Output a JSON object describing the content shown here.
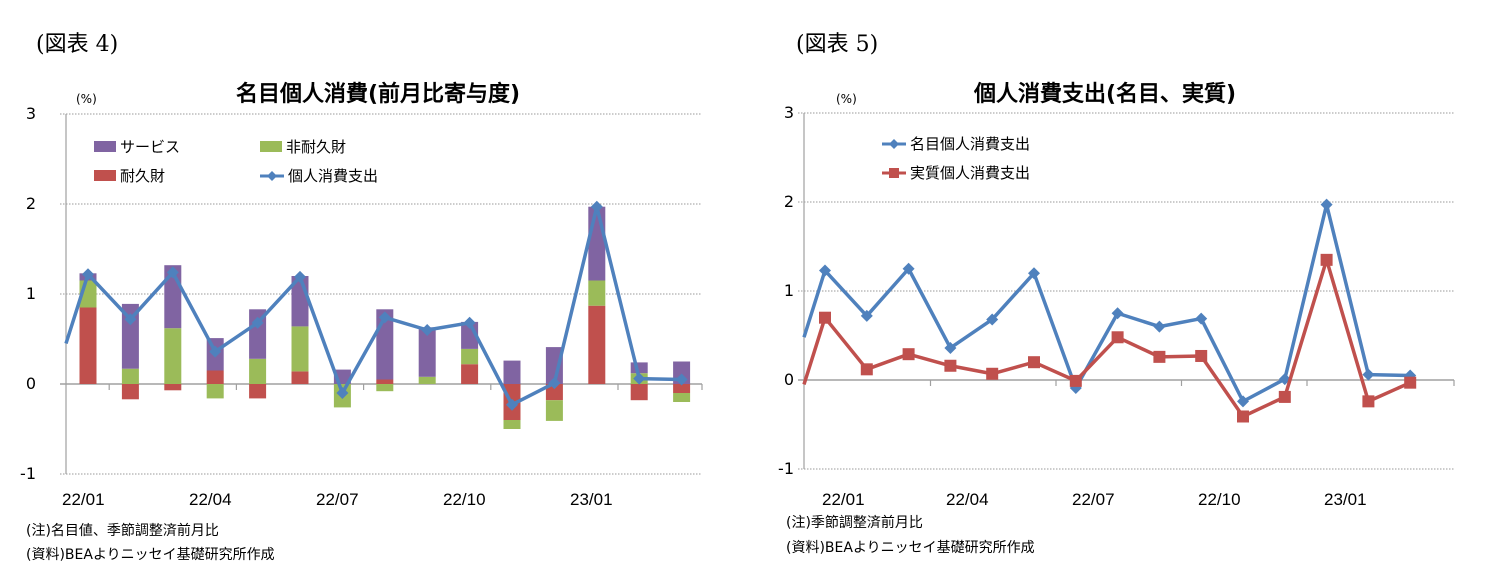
{
  "left": {
    "fig_label": "(図表 4)",
    "title": "名目個人消費(前月比寄与度)",
    "unit": "(%)",
    "y_ticks": [
      "3",
      "2",
      "1",
      "0",
      "-1"
    ],
    "x_ticks": [
      "22/01",
      "22/04",
      "22/07",
      "22/10",
      "23/01"
    ],
    "legend": {
      "services": "サービス",
      "nondurable": "非耐久財",
      "durable": "耐久財",
      "total": "個人消費支出"
    },
    "notes": [
      "(注)名目値、季節調整済前月比",
      "(資料)BEAよりニッセイ基礎研究所作成"
    ]
  },
  "right": {
    "fig_label": "(図表 5)",
    "title": "個人消費支出(名目、実質)",
    "unit": "(%)",
    "y_ticks": [
      "3",
      "2",
      "1",
      "0",
      "-1"
    ],
    "x_ticks": [
      "22/01",
      "22/04",
      "22/07",
      "22/10",
      "23/01"
    ],
    "legend": {
      "nominal": "名目個人消費支出",
      "real": "実質個人消費支出"
    },
    "notes": [
      "(注)季節調整済前月比",
      "(資料)BEAよりニッセイ基礎研究所作成"
    ]
  },
  "colors": {
    "services": "#8064a2",
    "nondurable": "#9bbb59",
    "durable": "#c0504d",
    "line_blue": "#4f81bd",
    "line_red": "#c0504d",
    "grid": "#999999",
    "axis": "#a0a0a0"
  },
  "chart_data": [
    {
      "type": "bar",
      "stacked": true,
      "title": "名目個人消費(前月比寄与度)",
      "ylabel": "(%)",
      "ylim": [
        -1,
        3
      ],
      "categories": [
        "21/12",
        "22/01",
        "22/02",
        "22/03",
        "22/04",
        "22/05",
        "22/06",
        "22/07",
        "22/08",
        "22/09",
        "22/10",
        "22/11",
        "22/12",
        "23/01",
        "23/02",
        "23/03"
      ],
      "series": [
        {
          "name": "耐久財",
          "type": "bar",
          "values": [
            null,
            0.85,
            -0.17,
            -0.07,
            0.15,
            -0.16,
            0.14,
            0.0,
            0.05,
            0.0,
            0.22,
            -0.4,
            -0.18,
            0.87,
            -0.18,
            -0.1
          ]
        },
        {
          "name": "非耐久財",
          "type": "bar",
          "values": [
            null,
            0.3,
            0.17,
            0.62,
            -0.16,
            0.28,
            0.5,
            -0.26,
            -0.08,
            0.08,
            0.17,
            -0.1,
            -0.23,
            0.28,
            0.12,
            -0.1
          ]
        },
        {
          "name": "サービス",
          "type": "bar",
          "values": [
            null,
            0.08,
            0.72,
            0.7,
            0.36,
            0.55,
            0.56,
            0.16,
            0.78,
            0.55,
            0.3,
            0.26,
            0.41,
            0.82,
            0.12,
            0.25
          ]
        },
        {
          "name": "個人消費支出",
          "type": "line",
          "values": [
            0.45,
            1.22,
            0.72,
            1.24,
            0.36,
            0.68,
            1.19,
            -0.1,
            0.74,
            0.6,
            0.68,
            -0.23,
            0.01,
            1.97,
            0.06,
            0.05
          ]
        }
      ],
      "x_tick_labels": [
        "22/01",
        "22/04",
        "22/07",
        "22/10",
        "23/01"
      ],
      "grid": true,
      "legend_position": "upper-left inside"
    },
    {
      "type": "line",
      "title": "個人消費支出(名目、実質)",
      "ylabel": "(%)",
      "ylim": [
        -1,
        3
      ],
      "categories": [
        "21/12",
        "22/01",
        "22/02",
        "22/03",
        "22/04",
        "22/05",
        "22/06",
        "22/07",
        "22/08",
        "22/09",
        "22/10",
        "22/11",
        "22/12",
        "23/01",
        "23/02",
        "23/03"
      ],
      "series": [
        {
          "name": "名目個人消費支出",
          "values": [
            0.48,
            1.23,
            0.72,
            1.25,
            0.36,
            0.68,
            1.2,
            -0.09,
            0.75,
            0.6,
            0.69,
            -0.24,
            0.01,
            1.97,
            0.06,
            0.05
          ]
        },
        {
          "name": "実質個人消費支出",
          "values": [
            -0.05,
            0.7,
            0.12,
            0.29,
            0.16,
            0.07,
            0.2,
            -0.01,
            0.48,
            0.26,
            0.27,
            -0.41,
            -0.19,
            1.35,
            -0.24,
            -0.03
          ]
        }
      ],
      "x_tick_labels": [
        "22/01",
        "22/04",
        "22/07",
        "22/10",
        "23/01"
      ],
      "grid": true,
      "legend_position": "upper-left inside"
    }
  ]
}
